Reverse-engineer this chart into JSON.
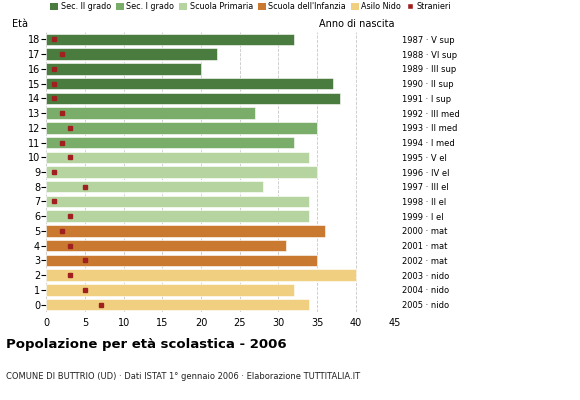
{
  "ages": [
    18,
    17,
    16,
    15,
    14,
    13,
    12,
    11,
    10,
    9,
    8,
    7,
    6,
    5,
    4,
    3,
    2,
    1,
    0
  ],
  "years": [
    "1987 · V sup",
    "1988 · VI sup",
    "1989 · III sup",
    "1990 · II sup",
    "1991 · I sup",
    "1992 · III med",
    "1993 · II med",
    "1994 · I med",
    "1995 · V el",
    "1996 · IV el",
    "1997 · III el",
    "1998 · II el",
    "1999 · I el",
    "2000 · mat",
    "2001 · mat",
    "2002 · mat",
    "2003 · nido",
    "2004 · nido",
    "2005 · nido"
  ],
  "bar_values": [
    32,
    22,
    20,
    37,
    38,
    27,
    35,
    32,
    34,
    35,
    28,
    34,
    34,
    36,
    31,
    35,
    40,
    32,
    34
  ],
  "bar_colors": [
    "#4a7c3f",
    "#4a7c3f",
    "#4a7c3f",
    "#4a7c3f",
    "#4a7c3f",
    "#7aad6a",
    "#7aad6a",
    "#7aad6a",
    "#b5d4a0",
    "#b5d4a0",
    "#b5d4a0",
    "#b5d4a0",
    "#b5d4a0",
    "#c97a30",
    "#c97a30",
    "#c97a30",
    "#f0d080",
    "#f0d080",
    "#f0d080"
  ],
  "stranieri_values": [
    1,
    2,
    1,
    1,
    1,
    2,
    3,
    2,
    3,
    1,
    5,
    1,
    3,
    2,
    3,
    5,
    3,
    5,
    7
  ],
  "legend_labels": [
    "Sec. II grado",
    "Sec. I grado",
    "Scuola Primaria",
    "Scuola dell'Infanzia",
    "Asilo Nido",
    "Stranieri"
  ],
  "legend_colors": [
    "#4a7c3f",
    "#7aad6a",
    "#b5d4a0",
    "#c97a30",
    "#f0d080",
    "#a02020"
  ],
  "title": "Popolazione per età scolastica - 2006",
  "subtitle": "COMUNE DI BUTTRIO (UD) · Dati ISTAT 1° gennaio 2006 · Elaborazione TUTTITALIA.IT",
  "xlabel_eta": "Età",
  "xlabel_anno": "Anno di nascita",
  "xlim": [
    0,
    45
  ],
  "xticks": [
    0,
    5,
    10,
    15,
    20,
    25,
    30,
    35,
    40,
    45
  ],
  "bg_color": "#ffffff",
  "grid_color": "#c8c8c8",
  "bar_height": 0.78
}
